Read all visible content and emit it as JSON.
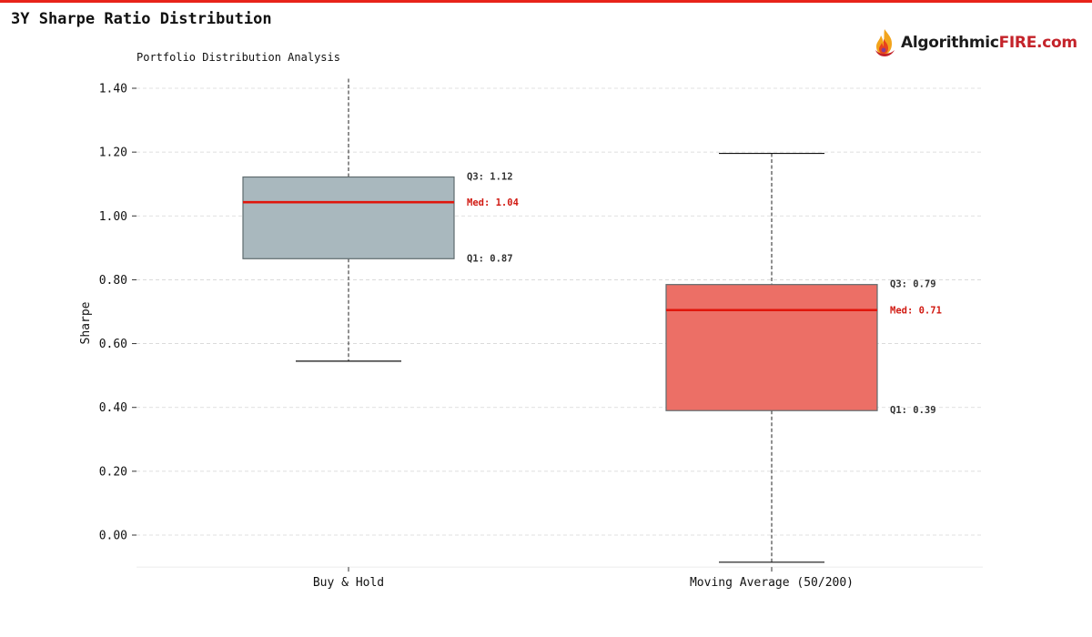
{
  "header": {
    "title": "3Y Sharpe Ratio Distribution"
  },
  "brand": {
    "name_part1": "Algorithmic",
    "name_part2": "FIRE.com"
  },
  "colors": {
    "accent": "#e8231a",
    "box_buy_hold": "#a9b8be",
    "box_moving_average": "#ec6f66",
    "median_line": "#e0160c",
    "median_label": "#d11a12"
  },
  "chart_data": {
    "type": "box",
    "title": "Portfolio Distribution Analysis",
    "xlabel": "",
    "ylabel": "Sharpe",
    "ylim": [
      -0.1,
      1.48
    ],
    "yticks": [
      0.0,
      0.2,
      0.4,
      0.6,
      0.8,
      1.0,
      1.2,
      1.4
    ],
    "ytick_labels": [
      "0.00",
      "0.20",
      "0.40",
      "0.60",
      "0.80",
      "1.00",
      "1.20",
      "1.40"
    ],
    "grid": true,
    "categories": [
      "Buy & Hold",
      "Moving Average (50/200)"
    ],
    "series": [
      {
        "category": "Buy & Hold",
        "whisker_low": 0.545,
        "q1": 0.866,
        "median": 1.043,
        "q3": 1.122,
        "whisker_high": 1.43,
        "labels": {
          "q3": "Q3: 1.12",
          "median": "Med: 1.04",
          "q1": "Q1: 0.87"
        },
        "color": "#a9b8be"
      },
      {
        "category": "Moving Average (50/200)",
        "whisker_low": -0.085,
        "q1": 0.39,
        "median": 0.705,
        "q3": 0.785,
        "whisker_high": 1.196,
        "labels": {
          "q3": "Q3: 0.79",
          "median": "Med: 0.71",
          "q1": "Q1: 0.39"
        },
        "color": "#ec6f66"
      }
    ]
  }
}
